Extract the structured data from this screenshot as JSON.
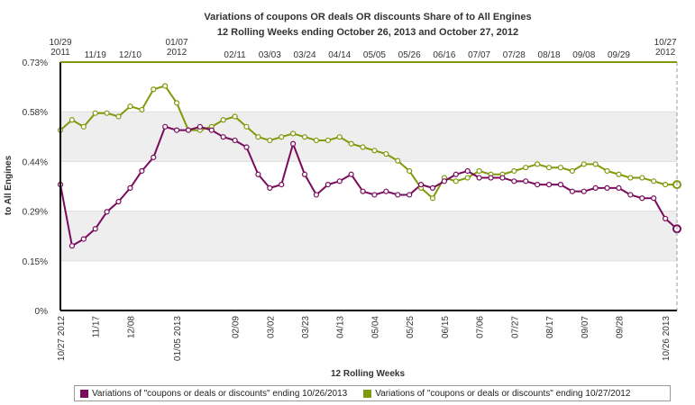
{
  "chart_data": {
    "type": "line",
    "title": "Variations of coupons OR deals OR discounts Share of  to All Engines",
    "subtitle": "12 Rolling Weeks ending October 26, 2013 and October 27, 2012",
    "xlabel": "12 Rolling Weeks",
    "ylabel": "to All Engines",
    "ylim": [
      0,
      0.73
    ],
    "y_ticks": [
      "0%",
      "0.15%",
      "0.29%",
      "0.44%",
      "0.58%",
      "0.73%"
    ],
    "bottom_ticks": [
      {
        "week": 0,
        "label": "10/27 2012"
      },
      {
        "week": 3,
        "label": "11/17"
      },
      {
        "week": 6,
        "label": "12/08"
      },
      {
        "week": 10,
        "label": "01/05 2013"
      },
      {
        "week": 15,
        "label": "02/09"
      },
      {
        "week": 18,
        "label": "03/02"
      },
      {
        "week": 21,
        "label": "03/23"
      },
      {
        "week": 24,
        "label": "04/13"
      },
      {
        "week": 27,
        "label": "05/04"
      },
      {
        "week": 30,
        "label": "05/25"
      },
      {
        "week": 33,
        "label": "06/15"
      },
      {
        "week": 36,
        "label": "07/06"
      },
      {
        "week": 39,
        "label": "07/27"
      },
      {
        "week": 42,
        "label": "08/17"
      },
      {
        "week": 45,
        "label": "09/07"
      },
      {
        "week": 48,
        "label": "09/28"
      },
      {
        "week": 52,
        "label": "10/26 2013"
      }
    ],
    "top_ticks": [
      {
        "week": 0,
        "label": "10/29 2011"
      },
      {
        "week": 3,
        "label": "11/19"
      },
      {
        "week": 6,
        "label": "12/10"
      },
      {
        "week": 10,
        "label": "01/07 2012"
      },
      {
        "week": 15,
        "label": "02/11"
      },
      {
        "week": 18,
        "label": "03/03"
      },
      {
        "week": 21,
        "label": "03/24"
      },
      {
        "week": 24,
        "label": "04/14"
      },
      {
        "week": 27,
        "label": "05/05"
      },
      {
        "week": 30,
        "label": "05/26"
      },
      {
        "week": 33,
        "label": "06/16"
      },
      {
        "week": 36,
        "label": "07/07"
      },
      {
        "week": 39,
        "label": "07/28"
      },
      {
        "week": 42,
        "label": "08/18"
      },
      {
        "week": 45,
        "label": "09/08"
      },
      {
        "week": 48,
        "label": "09/29"
      },
      {
        "week": 52,
        "label": "10/27 2012"
      }
    ],
    "series": [
      {
        "name": "Variations of \"coupons or deals or discounts\" ending 10/26/2013",
        "color": "#7a0a5c",
        "values": [
          0.37,
          0.19,
          0.21,
          0.24,
          0.29,
          0.32,
          0.36,
          0.41,
          0.45,
          0.54,
          0.53,
          0.53,
          0.54,
          0.53,
          0.51,
          0.5,
          0.48,
          0.4,
          0.36,
          0.37,
          0.49,
          0.4,
          0.34,
          0.37,
          0.38,
          0.4,
          0.35,
          0.34,
          0.35,
          0.34,
          0.34,
          0.37,
          0.36,
          0.38,
          0.4,
          0.41,
          0.39,
          0.39,
          0.39,
          0.38,
          0.38,
          0.37,
          0.37,
          0.37,
          0.35,
          0.35,
          0.36,
          0.36,
          0.36,
          0.34,
          0.33,
          0.33,
          0.27,
          0.24
        ]
      },
      {
        "name": "Variations of \"coupons or deals or discounts\" ending 10/27/2012",
        "color": "#7f9a0b",
        "values": [
          0.53,
          0.56,
          0.54,
          0.58,
          0.58,
          0.57,
          0.6,
          0.59,
          0.65,
          0.66,
          0.61,
          0.53,
          0.53,
          0.54,
          0.56,
          0.57,
          0.54,
          0.51,
          0.5,
          0.51,
          0.52,
          0.51,
          0.5,
          0.5,
          0.51,
          0.49,
          0.48,
          0.47,
          0.46,
          0.44,
          0.41,
          0.36,
          0.33,
          0.39,
          0.38,
          0.39,
          0.41,
          0.4,
          0.4,
          0.41,
          0.42,
          0.43,
          0.42,
          0.42,
          0.41,
          0.43,
          0.43,
          0.41,
          0.4,
          0.39,
          0.39,
          0.38,
          0.37,
          0.37
        ]
      }
    ]
  },
  "legend": {
    "item1": "Variations of \"coupons or deals or discounts\" ending 10/26/2013",
    "item2": "Variations of \"coupons or deals or discounts\" ending 10/27/2012"
  }
}
